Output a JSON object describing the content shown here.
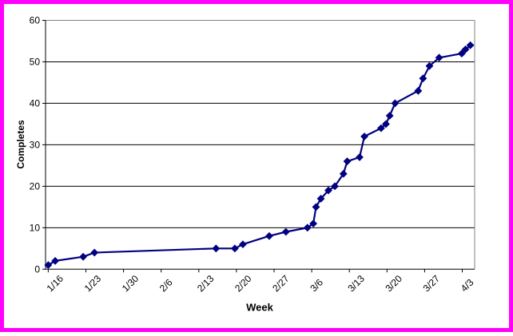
{
  "frame": {
    "border_color": "#FF00FF",
    "background": "#FFFFFF"
  },
  "chart_data": {
    "type": "line",
    "title": "",
    "xlabel": "Week",
    "ylabel": "Completes",
    "legend": "none",
    "grid": "horizontal-black-1px",
    "plot_border_color": "#808080",
    "axis_color": "#000000",
    "grid_color": "#000000",
    "ylim": [
      0,
      60
    ],
    "y_ticks": [
      0,
      10,
      20,
      30,
      40,
      50,
      60
    ],
    "x_tick_labels": [
      "1/16",
      "1/23",
      "1/30",
      "2/6",
      "2/13",
      "2/20",
      "2/27",
      "3/6",
      "3/13",
      "3/20",
      "3/27",
      "4/3"
    ],
    "x_tick_days": [
      0,
      7,
      14,
      21,
      28,
      35,
      42,
      49,
      56,
      63,
      70,
      77
    ],
    "x_range_days": [
      -0.5,
      79.3
    ],
    "series": [
      {
        "name": "Completes",
        "color": "#000080",
        "marker": "diamond",
        "points": [
          [
            0,
            1
          ],
          [
            1.3,
            2
          ],
          [
            6.5,
            3
          ],
          [
            8.6,
            4
          ],
          [
            31.2,
            5
          ],
          [
            34.7,
            5
          ],
          [
            36.2,
            6
          ],
          [
            41.1,
            8
          ],
          [
            44.2,
            9
          ],
          [
            48.2,
            10
          ],
          [
            49.3,
            11
          ],
          [
            49.8,
            15
          ],
          [
            50.7,
            17
          ],
          [
            52.1,
            19
          ],
          [
            53.3,
            20
          ],
          [
            54.9,
            23
          ],
          [
            55.6,
            26
          ],
          [
            57.9,
            27
          ],
          [
            58.8,
            32
          ],
          [
            61.9,
            34
          ],
          [
            62.8,
            35
          ],
          [
            63.5,
            37
          ],
          [
            64.5,
            40
          ],
          [
            68.8,
            43
          ],
          [
            69.7,
            46
          ],
          [
            70.9,
            49
          ],
          [
            72.7,
            51
          ],
          [
            76.9,
            52
          ],
          [
            77.6,
            53
          ],
          [
            78.5,
            54
          ]
        ]
      }
    ]
  }
}
